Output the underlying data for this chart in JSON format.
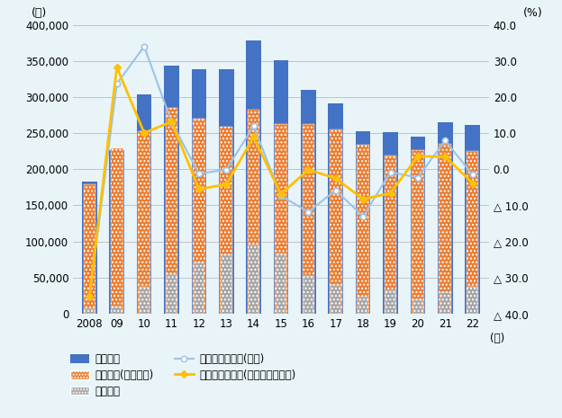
{
  "years": [
    2008,
    2009,
    2010,
    2011,
    2012,
    2013,
    2014,
    2015,
    2016,
    2017,
    2018,
    2019,
    2020,
    2021,
    2022
  ],
  "year_labels": [
    "2008",
    "09",
    "10",
    "11",
    "12",
    "13",
    "14",
    "15",
    "16",
    "17",
    "18",
    "19",
    "20",
    "21",
    "22"
  ],
  "production": [
    182974,
    226356,
    303456,
    343296,
    339038,
    338720,
    379223,
    351085,
    309531,
    291563,
    253241,
    251304,
    245615,
    265320,
    261263
  ],
  "domestic_sales": [
    178809,
    229450,
    252530,
    285790,
    270078,
    258753,
    282130,
    262593,
    262346,
    255770,
    234589,
    219075,
    226870,
    234780,
    225801
  ],
  "exports": [
    7196,
    9655,
    36914,
    54785,
    70906,
    82427,
    95518,
    83307,
    51463,
    39519,
    23982,
    32482,
    19133,
    30014,
    36592
  ],
  "production_growth": [
    -35.4,
    23.7,
    34.1,
    13.1,
    -1.2,
    -0.1,
    12.0,
    -7.4,
    -11.8,
    -5.8,
    -13.1,
    -0.8,
    -2.3,
    8.0,
    -1.5
  ],
  "sales_growth": [
    -35.3,
    28.3,
    10.1,
    13.2,
    -5.5,
    -4.2,
    9.0,
    -6.9,
    -0.1,
    -2.5,
    -8.3,
    -6.6,
    3.6,
    3.5,
    -3.8
  ],
  "bar_color_production": "#4472C4",
  "bar_color_sales": "#ED7D31",
  "bar_color_exports": "#A5A5A5",
  "line_color_production_growth": "#9DC3E6",
  "line_color_sales_growth": "#FFC000",
  "bg_color": "#E8F4F8",
  "ylim_left": [
    0,
    400000
  ],
  "ylim_right": [
    -40,
    40
  ],
  "yticks_left": [
    0,
    50000,
    100000,
    150000,
    200000,
    250000,
    300000,
    350000,
    400000
  ],
  "yticks_right": [
    -40,
    -30,
    -20,
    -10,
    0,
    10,
    20,
    30,
    40
  ],
  "ylabel_left": "(台)",
  "ylabel_right": "(%)",
  "xlabel_suffix": "(年)",
  "legend_production": "生産台数",
  "legend_domestic_sales": "販売台数(台湾域内)",
  "legend_exports": "輸出台数",
  "legend_production_growth": "生産台数伸び率(右軸)",
  "legend_sales_growth": "販売台数伸び率(台湾域内、右軸)"
}
